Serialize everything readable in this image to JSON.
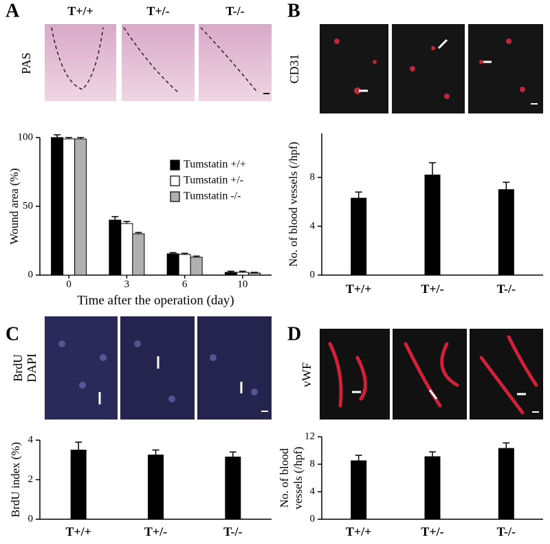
{
  "chart_data": [
    {
      "type": "grouped_bar",
      "panel": "A",
      "image_label": [
        "PAS"
      ],
      "image_columns": [
        "T+/+",
        "T+/-",
        "T-/-"
      ],
      "ylabel": "Wound area (%)",
      "xlabel": "Time after the operation (day)",
      "categories": [
        "0",
        "3",
        "6",
        "10"
      ],
      "series": [
        {
          "name": "Tumstatin +/+",
          "color": "#000000",
          "values": [
            100,
            40,
            15.5,
            2
          ],
          "errors": [
            2,
            2.5,
            0.8,
            0.8
          ]
        },
        {
          "name": "Tumstatin +/-",
          "color": "#ffffff",
          "values": [
            99,
            37.5,
            15,
            2
          ],
          "errors": [
            1,
            1.5,
            0.8,
            0.8
          ]
        },
        {
          "name": "Tumstatin -/-",
          "color": "#b0b0b0",
          "values": [
            99,
            30,
            13,
            1.5
          ],
          "errors": [
            1,
            1,
            0.8,
            0.5
          ]
        }
      ],
      "ylim": [
        0,
        100
      ],
      "yticks": [
        0,
        50,
        100
      ],
      "legend": "right"
    },
    {
      "type": "bar",
      "panel": "B",
      "image_label": [
        "CD31"
      ],
      "ylabel": [
        "No. of blood vessels (/hpf)"
      ],
      "categories": [
        "T+/+",
        "T+/-",
        "T-/-"
      ],
      "values": [
        6.3,
        8.2,
        7.0
      ],
      "errors": [
        0.5,
        1.0,
        0.6
      ],
      "color": "#000000",
      "ylim": [
        0,
        11.6
      ],
      "yticks": [
        0,
        4,
        8
      ]
    },
    {
      "type": "bar",
      "panel": "C",
      "image_label": [
        "BrdU",
        "DAPI"
      ],
      "ylabel": [
        "BrdU index (%)"
      ],
      "categories": [
        "T+/+",
        "T+/-",
        "T-/-"
      ],
      "values": [
        3.5,
        3.25,
        3.15
      ],
      "errors": [
        0.4,
        0.25,
        0.25
      ],
      "color": "#000000",
      "ylim": [
        0,
        4
      ],
      "yticks": [
        0,
        2,
        4
      ]
    },
    {
      "type": "bar",
      "panel": "D",
      "image_label": [
        "vWF"
      ],
      "ylabel": [
        "No. of blood",
        "vessels (/hpf)"
      ],
      "categories": [
        "T+/+",
        "T+/-",
        "T-/-"
      ],
      "values": [
        8.5,
        9.1,
        10.3
      ],
      "errors": [
        0.8,
        0.7,
        0.8
      ],
      "color": "#000000",
      "ylim": [
        0,
        12
      ],
      "yticks": [
        0,
        4,
        8,
        12
      ]
    }
  ]
}
